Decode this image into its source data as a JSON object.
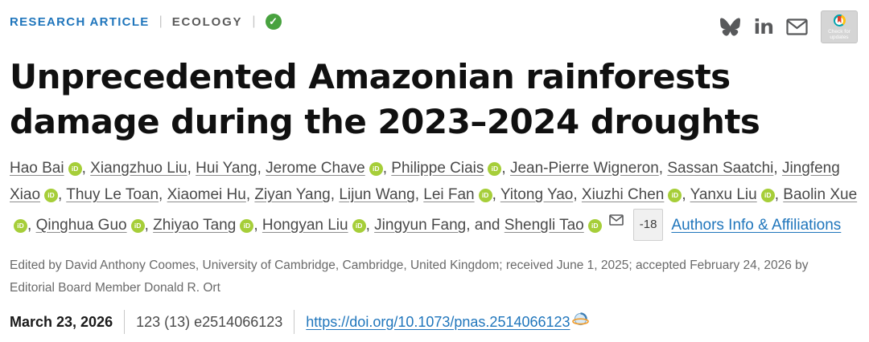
{
  "meta_bar": {
    "article_type": "RESEARCH ARTICLE",
    "separator": "|",
    "subject": "ECOLOGY",
    "access_icon": "open-access-check-icon",
    "access_glyph": "✓"
  },
  "share": {
    "icons": [
      "bluesky-icon",
      "linkedin-icon",
      "email-icon"
    ],
    "linkedin_glyph": "in",
    "check_for_updates_label": "Check for updates"
  },
  "title": "Unprecedented Amazonian rainforests damage during the 2023–2024 droughts",
  "authors": {
    "list": [
      {
        "name": "Hao Bai",
        "orcid": true
      },
      {
        "name": "Xiangzhuo Liu",
        "orcid": false
      },
      {
        "name": "Hui Yang",
        "orcid": false
      },
      {
        "name": "Jerome Chave",
        "orcid": true
      },
      {
        "name": "Philippe Ciais",
        "orcid": true
      },
      {
        "name": "Jean-Pierre Wigneron",
        "orcid": false
      },
      {
        "name": "Sassan Saatchi",
        "orcid": false
      },
      {
        "name": "Jingfeng Xiao",
        "orcid": true
      },
      {
        "name": "Thuy Le Toan",
        "orcid": false
      },
      {
        "name": "Xiaomei Hu",
        "orcid": false
      },
      {
        "name": "Ziyan Yang",
        "orcid": false
      },
      {
        "name": "Lijun Wang",
        "orcid": false
      },
      {
        "name": "Lei Fan",
        "orcid": true
      },
      {
        "name": "Yitong Yao",
        "orcid": false
      },
      {
        "name": "Xiuzhi Chen",
        "orcid": true
      },
      {
        "name": "Yanxu Liu",
        "orcid": true
      },
      {
        "name": "Baolin Xue",
        "orcid": true
      },
      {
        "name": "Qinghua Guo",
        "orcid": true
      },
      {
        "name": "Zhiyao Tang",
        "orcid": true
      },
      {
        "name": "Hongyan Liu",
        "orcid": true
      },
      {
        "name": "Jingyun Fang",
        "orcid": false
      },
      {
        "name": "Shengli Tao",
        "orcid": true,
        "corresponding": true
      }
    ],
    "separator": ", ",
    "last_separator": ", and ",
    "orcid_icon_label": "iD",
    "corresponding_icon": "envelope-icon",
    "collapse_badge": "-18",
    "info_link": "Authors Info & Affiliations"
  },
  "edited_by": "Edited by David Anthony Coomes, University of Cambridge, Cambridge, United Kingdom; received June 1, 2025; accepted February 24, 2026 by Editorial Board Member Donald R. Ort",
  "pub_info": {
    "date": "March 23, 2026",
    "citation": "123 (13) e2514066123",
    "doi": "https://doi.org/10.1073/pnas.2514066123",
    "doi_icon": "globe-icon"
  },
  "colors": {
    "link_blue": "#2076bc",
    "orcid_green": "#a6ce39",
    "access_green": "#48a23f",
    "title_black": "#101010",
    "body_gray": "#4a4a4a",
    "muted_gray": "#6a6a6a"
  }
}
